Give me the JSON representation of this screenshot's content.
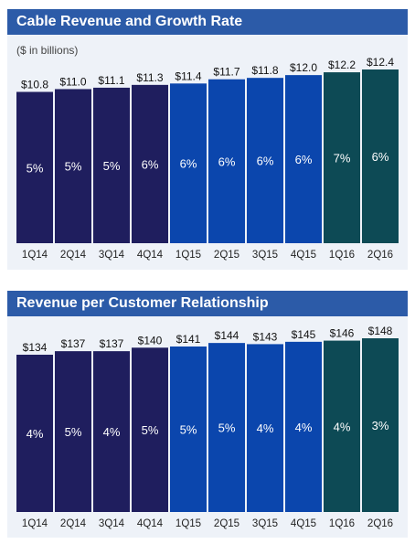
{
  "charts": [
    {
      "header": "Cable Revenue and Growth Rate",
      "subtitle": "($ in billions)"
    },
    {
      "header": "Revenue per Customer Relationship",
      "subtitle": ""
    }
  ],
  "colors": {
    "header_bg": "#2c5ba8",
    "panel_bg": "#eef2f8",
    "bar_2014": "#1f1e5e",
    "bar_2015": "#0b46ad",
    "bar_2016": "#0d4a55",
    "bar_text": "#ffffff",
    "value_text": "#111111",
    "axis_text": "#222222"
  },
  "chart_data": [
    {
      "type": "bar",
      "title": "Cable Revenue and Growth Rate",
      "unit_label": "($ in billions)",
      "categories": [
        "1Q14",
        "2Q14",
        "3Q14",
        "4Q14",
        "1Q15",
        "2Q15",
        "3Q15",
        "4Q15",
        "1Q16",
        "2Q16"
      ],
      "values": [
        10.8,
        11.0,
        11.1,
        11.3,
        11.4,
        11.7,
        11.8,
        12.0,
        12.2,
        12.4
      ],
      "value_labels": [
        "$10.8",
        "$11.0",
        "$11.1",
        "$11.3",
        "$11.4",
        "$11.7",
        "$11.8",
        "$12.0",
        "$12.2",
        "$12.4"
      ],
      "growth_labels": [
        "5%",
        "5%",
        "5%",
        "6%",
        "6%",
        "6%",
        "6%",
        "6%",
        "7%",
        "6%"
      ],
      "ylim": [
        0,
        12.4
      ],
      "grid": false,
      "legend": "none"
    },
    {
      "type": "bar",
      "title": "Revenue per Customer Relationship",
      "categories": [
        "1Q14",
        "2Q14",
        "3Q14",
        "4Q14",
        "1Q15",
        "2Q15",
        "3Q15",
        "4Q15",
        "1Q16",
        "2Q16"
      ],
      "values": [
        134,
        137,
        137,
        140,
        141,
        144,
        143,
        145,
        146,
        148
      ],
      "value_labels": [
        "$134",
        "$137",
        "$137",
        "$140",
        "$141",
        "$144",
        "$143",
        "$145",
        "$146",
        "$148"
      ],
      "growth_labels": [
        "4%",
        "5%",
        "4%",
        "5%",
        "5%",
        "5%",
        "4%",
        "4%",
        "4%",
        "3%"
      ],
      "ylim": [
        0,
        148
      ],
      "grid": false,
      "legend": "none"
    }
  ]
}
